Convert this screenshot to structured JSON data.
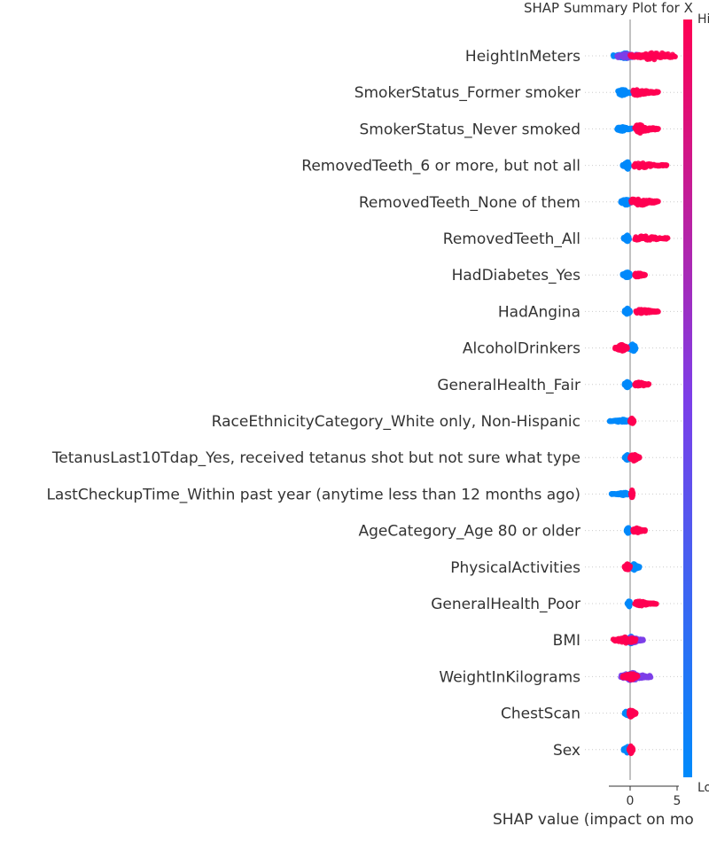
{
  "chart_data": {
    "type": "scatter",
    "subtype": "shap-beeswarm",
    "title": "SHAP Summary Plot for X",
    "xlabel": "SHAP value (impact on mo",
    "x_ticks": [
      0,
      5
    ],
    "xlim": [
      -2.5,
      5.5
    ],
    "colorbar": {
      "high_label": "Hi",
      "low_label": "Lo",
      "low_color": "#008afb",
      "mid_color": "#7c3ee8",
      "high_color": "#ff0052"
    },
    "features": [
      {
        "name": "HeightInMeters",
        "low": {
          "min": -1.8,
          "max": 0.2,
          "center": -0.5,
          "spread": 4
        },
        "high": {
          "min": 0.0,
          "max": 4.8,
          "center": 2.5,
          "spread": 5
        },
        "purple": {
          "min": -1.4,
          "max": 3.0,
          "center": -0.6,
          "spread": 3
        }
      },
      {
        "name": "SmokerStatus_Former smoker",
        "low": {
          "min": -1.3,
          "max": 0.0,
          "center": -0.8,
          "spread": 4
        },
        "high": {
          "min": 0.3,
          "max": 3.0,
          "center": 0.8,
          "spread": 4
        }
      },
      {
        "name": "SmokerStatus_Never smoked",
        "low": {
          "min": -1.4,
          "max": 0.2,
          "center": -0.9,
          "spread": 3
        },
        "high": {
          "min": 0.5,
          "max": 3.0,
          "center": 1.0,
          "spread": 5
        }
      },
      {
        "name": "RemovedTeeth_6 or more, but not all",
        "low": {
          "min": -0.8,
          "max": -0.1,
          "center": -0.3,
          "spread": 5
        },
        "high": {
          "min": 0.4,
          "max": 3.9,
          "center": 1.2,
          "spread": 3
        }
      },
      {
        "name": "RemovedTeeth_None of them",
        "low": {
          "min": -1.0,
          "max": 0.2,
          "center": -0.4,
          "spread": 4
        },
        "high": {
          "min": 0.1,
          "max": 3.0,
          "center": 0.9,
          "spread": 5
        }
      },
      {
        "name": "RemovedTeeth_All",
        "low": {
          "min": -0.7,
          "max": -0.1,
          "center": -0.3,
          "spread": 4
        },
        "high": {
          "min": 0.5,
          "max": 4.0,
          "center": 1.5,
          "spread": 3
        }
      },
      {
        "name": "HadDiabetes_Yes",
        "low": {
          "min": -0.8,
          "max": 0.0,
          "center": -0.3,
          "spread": 4
        },
        "high": {
          "min": 0.5,
          "max": 1.6,
          "center": 0.8,
          "spread": 3
        }
      },
      {
        "name": "HadAngina",
        "low": {
          "min": -0.6,
          "max": 0.0,
          "center": -0.3,
          "spread": 4
        },
        "high": {
          "min": 0.6,
          "max": 3.0,
          "center": 1.3,
          "spread": 3
        }
      },
      {
        "name": "AlcoholDrinkers",
        "low": {
          "min": -0.2,
          "max": 0.6,
          "center": 0.3,
          "spread": 5
        },
        "high": {
          "min": -1.6,
          "max": -0.3,
          "center": -0.9,
          "spread": 4
        }
      },
      {
        "name": "GeneralHealth_Fair",
        "low": {
          "min": -0.6,
          "max": 0.0,
          "center": -0.3,
          "spread": 4
        },
        "high": {
          "min": 0.5,
          "max": 2.0,
          "center": 1.0,
          "spread": 3
        }
      },
      {
        "name": "RaceEthnicityCategory_White only, Non-Hispanic",
        "low": {
          "min": -2.2,
          "max": 0.0,
          "center": -0.8,
          "spread": 2
        },
        "high": {
          "min": 0.0,
          "max": 0.4,
          "center": 0.2,
          "spread": 4
        }
      },
      {
        "name": "TetanusLast10Tdap_Yes, received tetanus shot but not sure what type",
        "low": {
          "min": -0.6,
          "max": 0.0,
          "center": -0.3,
          "spread": 4
        },
        "high": {
          "min": 0.0,
          "max": 1.0,
          "center": 0.4,
          "spread": 4
        }
      },
      {
        "name": "LastCheckupTime_Within past year (anytime less than 12 months ago)",
        "low": {
          "min": -2.0,
          "max": -0.2,
          "center": -0.6,
          "spread": 2
        },
        "high": {
          "min": 0.1,
          "max": 0.3,
          "center": 0.2,
          "spread": 5
        }
      },
      {
        "name": "AgeCategory_Age 80 or older",
        "low": {
          "min": -0.4,
          "max": 0.0,
          "center": -0.2,
          "spread": 4
        },
        "high": {
          "min": 0.3,
          "max": 1.6,
          "center": 0.7,
          "spread": 3
        }
      },
      {
        "name": "PhysicalActivities",
        "low": {
          "min": 0.0,
          "max": 1.0,
          "center": 0.4,
          "spread": 4
        },
        "high": {
          "min": -0.6,
          "max": 0.0,
          "center": -0.3,
          "spread": 4
        }
      },
      {
        "name": "GeneralHealth_Poor",
        "low": {
          "min": -0.3,
          "max": 0.0,
          "center": -0.1,
          "spread": 4
        },
        "high": {
          "min": 0.5,
          "max": 2.8,
          "center": 1.0,
          "spread": 3
        }
      },
      {
        "name": "BMI",
        "low": {
          "min": -0.2,
          "max": 0.5,
          "center": 0.1,
          "spread": 5
        },
        "high": {
          "min": -1.8,
          "max": 0.6,
          "center": -0.4,
          "spread": 4
        },
        "purple": {
          "min": -0.3,
          "max": 1.4,
          "center": 0.2,
          "spread": 4
        }
      },
      {
        "name": "WeightInKilograms",
        "low": {
          "min": -0.3,
          "max": 0.4,
          "center": 0.0,
          "spread": 4
        },
        "high": {
          "min": -0.8,
          "max": 0.8,
          "center": 0.1,
          "spread": 4
        },
        "purple": {
          "min": -1.0,
          "max": 2.2,
          "center": 0.1,
          "spread": 5
        }
      },
      {
        "name": "ChestScan",
        "low": {
          "min": -0.6,
          "max": 0.2,
          "center": -0.2,
          "spread": 4
        },
        "high": {
          "min": -0.1,
          "max": 0.6,
          "center": 0.1,
          "spread": 5
        }
      },
      {
        "name": "Sex",
        "low": {
          "min": -0.7,
          "max": 0.0,
          "center": -0.3,
          "spread": 4
        },
        "high": {
          "min": -0.1,
          "max": 0.3,
          "center": 0.1,
          "spread": 5
        }
      }
    ]
  }
}
